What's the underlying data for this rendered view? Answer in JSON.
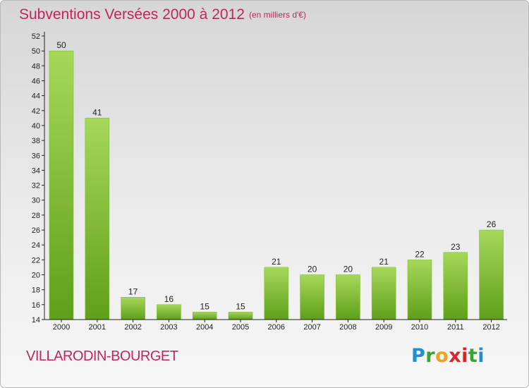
{
  "header": {
    "title": "Subventions Versées 2000 à 2012",
    "unit": "(en milliers d'€)"
  },
  "footer": {
    "commune": "VILLARODIN-BOURGET",
    "logo_text": "Proxiti"
  },
  "colors": {
    "title": "#c0255f",
    "bar_light": "#a6d85a",
    "bar_dark": "#5f9f19",
    "axis": "#222222"
  },
  "chart_data": {
    "type": "bar",
    "categories": [
      "2000",
      "2001",
      "2002",
      "2003",
      "2004",
      "2005",
      "2006",
      "2007",
      "2008",
      "2009",
      "2010",
      "2011",
      "2012"
    ],
    "values": [
      50,
      41,
      17,
      16,
      15,
      15,
      21,
      20,
      20,
      21,
      22,
      23,
      26
    ],
    "title": "Subventions Versées 2000 à 2012",
    "subtitle": "(en milliers d'€)",
    "ylim": [
      14,
      52
    ],
    "yticks": [
      14,
      16,
      18,
      20,
      22,
      24,
      26,
      28,
      30,
      32,
      34,
      36,
      38,
      40,
      42,
      44,
      46,
      48,
      50,
      52
    ],
    "grid": false,
    "legend": "none",
    "data_labels": true
  }
}
